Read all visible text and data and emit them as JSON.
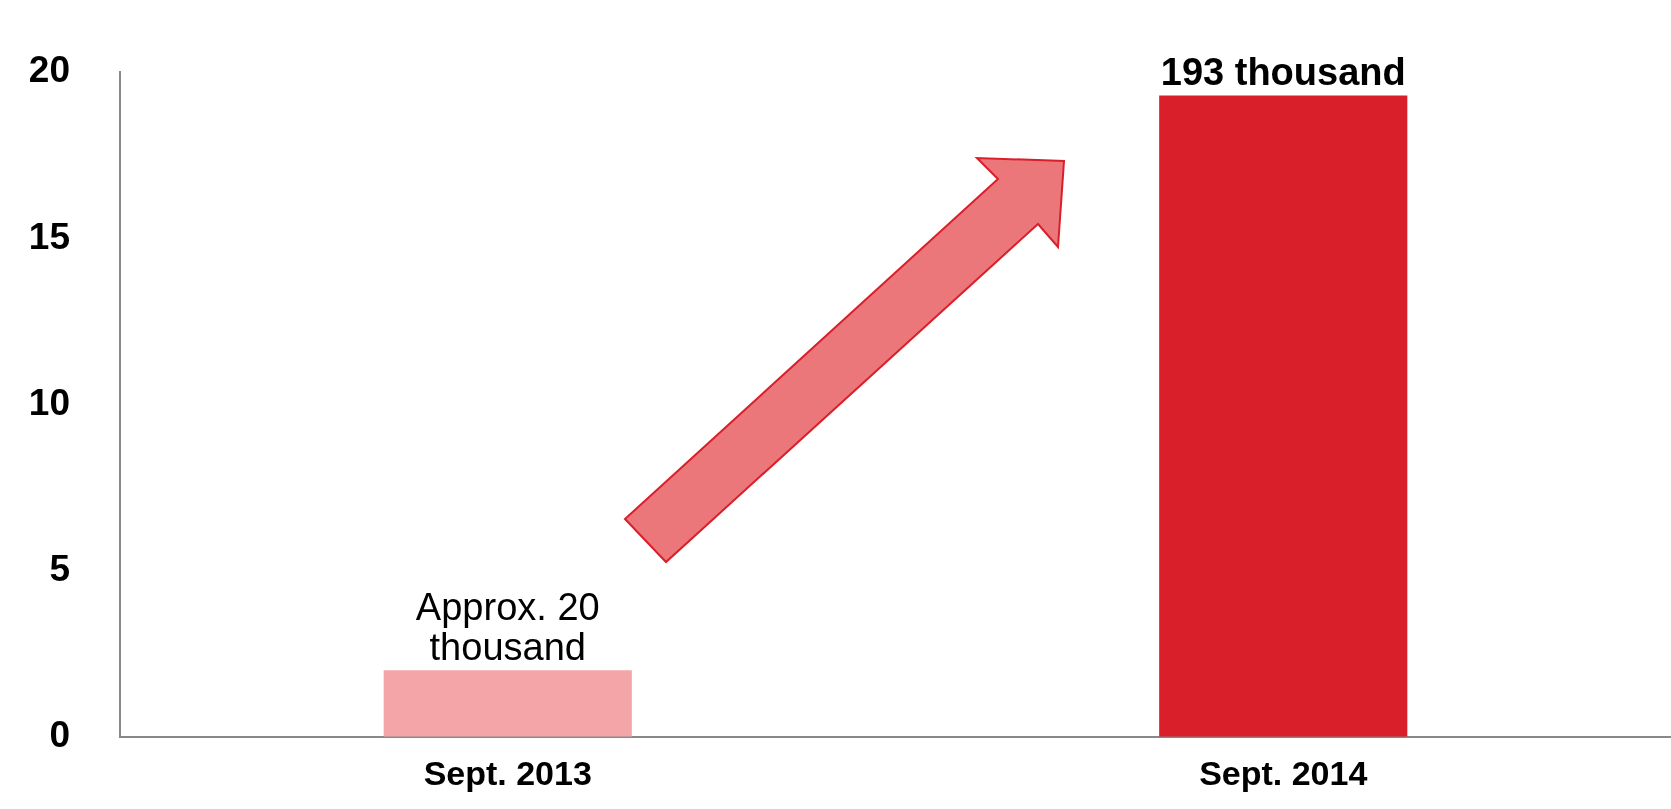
{
  "chart_data": {
    "type": "bar",
    "categories": [
      "Sept. 2013",
      "Sept. 2014"
    ],
    "values": [
      2,
      19.3
    ],
    "colors": [
      "#f3a5a8",
      "#d91f29"
    ],
    "annotations": [
      {
        "text": "Approx. 20 thousand",
        "x": "Sept. 2013",
        "y": 2
      },
      {
        "text": "193 thousand",
        "x": "Sept. 2014",
        "y": 19.3
      }
    ],
    "ylim": [
      0,
      20
    ],
    "yticks": [
      0,
      5,
      10,
      15,
      20
    ],
    "grid": false,
    "legend": false
  }
}
